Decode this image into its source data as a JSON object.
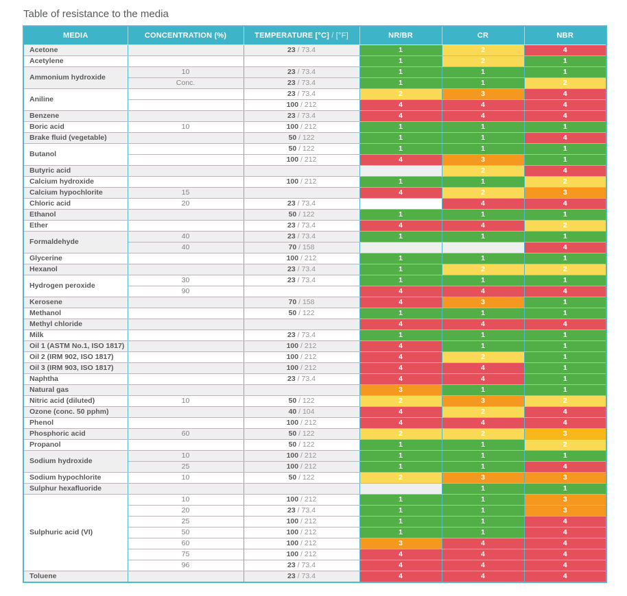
{
  "title": "Table of resistance to the media",
  "header": {
    "media": "MEDIA",
    "concentration": "CONCENTRATION (%)",
    "temperature_c": "TEMPERATURE [°C]",
    "temperature_sep": " / ",
    "temperature_f": "[°F]",
    "nr_br": "NR/BR",
    "cr": "CR",
    "nbr": "NBR"
  },
  "colors": {
    "header_teal": "#3eb4c8",
    "row_alt_gray": "#efefef",
    "border_teal": "#4cb9cc"
  },
  "table": {
    "rating_colors": {
      "1": "#52ae46",
      "2": "#fada54",
      "3": "#f6981f",
      "3a": "#fab71c",
      "4": "#e5505d"
    },
    "groups": [
      {
        "media": "Acetone",
        "rows": [
          {
            "concentration": "",
            "temp_c": "23",
            "temp_f": "73.4",
            "ratings": [
              "1",
              "2",
              "4"
            ]
          }
        ]
      },
      {
        "media": "Acetylene",
        "rows": [
          {
            "concentration": "",
            "temp_c": "",
            "temp_f": "",
            "ratings": [
              "1",
              "2",
              "1"
            ]
          }
        ]
      },
      {
        "media": "Ammonium hydroxide",
        "rows": [
          {
            "concentration": "10",
            "temp_c": "23",
            "temp_f": "73.4",
            "ratings": [
              "1",
              "1",
              "1"
            ]
          },
          {
            "concentration": "Conc.",
            "temp_c": "23",
            "temp_f": "73.4",
            "ratings": [
              "1",
              "1",
              "2"
            ]
          }
        ]
      },
      {
        "media": "Aniline",
        "rows": [
          {
            "concentration": "",
            "temp_c": "23",
            "temp_f": "73.4",
            "ratings": [
              "2",
              "3",
              "4"
            ]
          },
          {
            "concentration": "",
            "temp_c": "100",
            "temp_f": "212",
            "ratings": [
              "4",
              "4",
              "4"
            ]
          }
        ]
      },
      {
        "media": "Benzene",
        "rows": [
          {
            "concentration": "",
            "temp_c": "23",
            "temp_f": "73.4",
            "ratings": [
              "4",
              "4",
              "4"
            ]
          }
        ]
      },
      {
        "media": "Boric acid",
        "rows": [
          {
            "concentration": "10",
            "temp_c": "100",
            "temp_f": "212",
            "ratings": [
              "1",
              "1",
              "1"
            ]
          }
        ]
      },
      {
        "media": "Brake fluid (vegetable)",
        "rows": [
          {
            "concentration": "",
            "temp_c": "50",
            "temp_f": "122",
            "ratings": [
              "1",
              "1",
              "4"
            ]
          }
        ]
      },
      {
        "media": "Butanol",
        "rows": [
          {
            "concentration": "",
            "temp_c": "50",
            "temp_f": "122",
            "ratings": [
              "1",
              "1",
              "1"
            ]
          },
          {
            "concentration": "",
            "temp_c": "100",
            "temp_f": "212",
            "ratings": [
              "4",
              "3",
              "1"
            ]
          }
        ]
      },
      {
        "media": "Butyric acid",
        "rows": [
          {
            "concentration": "",
            "temp_c": "",
            "temp_f": "",
            "ratings": [
              "",
              "2",
              "4"
            ]
          }
        ]
      },
      {
        "media": "Calcium hydroxide",
        "rows": [
          {
            "concentration": "",
            "temp_c": "100",
            "temp_f": "212",
            "ratings": [
              "1",
              "1",
              "2"
            ]
          }
        ]
      },
      {
        "media": "Calcium hypochlorite",
        "rows": [
          {
            "concentration": "15",
            "temp_c": "",
            "temp_f": "",
            "ratings": [
              "4",
              "2",
              "3"
            ]
          }
        ]
      },
      {
        "media": "Chloric acid",
        "rows": [
          {
            "concentration": "20",
            "temp_c": "23",
            "temp_f": "73.4",
            "ratings": [
              "",
              "4",
              "4"
            ]
          }
        ]
      },
      {
        "media": "Ethanol",
        "rows": [
          {
            "concentration": "",
            "temp_c": "50",
            "temp_f": "122",
            "ratings": [
              "1",
              "1",
              "1"
            ]
          }
        ]
      },
      {
        "media": "Ether",
        "rows": [
          {
            "concentration": "",
            "temp_c": "23",
            "temp_f": "73.4",
            "ratings": [
              "4",
              "4",
              "2"
            ]
          }
        ]
      },
      {
        "media": "Formaldehyde",
        "rows": [
          {
            "concentration": "40",
            "temp_c": "23",
            "temp_f": "73.4",
            "ratings": [
              "1",
              "1",
              "1"
            ]
          },
          {
            "concentration": "40",
            "temp_c": "70",
            "temp_f": "158",
            "ratings": [
              "",
              "",
              "4"
            ]
          }
        ]
      },
      {
        "media": "Glycerine",
        "rows": [
          {
            "concentration": "",
            "temp_c": "100",
            "temp_f": "212",
            "ratings": [
              "1",
              "1",
              "1"
            ]
          }
        ]
      },
      {
        "media": "Hexanol",
        "rows": [
          {
            "concentration": "",
            "temp_c": "23",
            "temp_f": "73.4",
            "ratings": [
              "1",
              "2",
              "2"
            ]
          }
        ]
      },
      {
        "media": "Hydrogen peroxide",
        "rows": [
          {
            "concentration": "30",
            "temp_c": "23",
            "temp_f": "73.4",
            "ratings": [
              "1",
              "1",
              "1"
            ]
          },
          {
            "concentration": "90",
            "temp_c": "",
            "temp_f": "",
            "ratings": [
              "4",
              "4",
              "4"
            ]
          }
        ]
      },
      {
        "media": "Kerosene",
        "rows": [
          {
            "concentration": "",
            "temp_c": "70",
            "temp_f": "158",
            "ratings": [
              "4",
              "3",
              "1"
            ]
          }
        ]
      },
      {
        "media": "Methanol",
        "rows": [
          {
            "concentration": "",
            "temp_c": "50",
            "temp_f": "122",
            "ratings": [
              "1",
              "1",
              "1"
            ]
          }
        ]
      },
      {
        "media": "Methyl chloride",
        "rows": [
          {
            "concentration": "",
            "temp_c": "",
            "temp_f": "",
            "ratings": [
              "4",
              "4",
              "4"
            ]
          }
        ]
      },
      {
        "media": "Milk",
        "rows": [
          {
            "concentration": "",
            "temp_c": "23",
            "temp_f": "73.4",
            "ratings": [
              "1",
              "1",
              "1"
            ]
          }
        ]
      },
      {
        "media": "Oil 1 (ASTM No.1, ISO 1817)",
        "rows": [
          {
            "concentration": "",
            "temp_c": "100",
            "temp_f": "212",
            "ratings": [
              "4",
              "1",
              "1"
            ]
          }
        ]
      },
      {
        "media": "Oil 2 (IRM 902, ISO 1817)",
        "rows": [
          {
            "concentration": "",
            "temp_c": "100",
            "temp_f": "212",
            "ratings": [
              "4",
              "2",
              "1"
            ]
          }
        ]
      },
      {
        "media": "Oil 3 (IRM 903, ISO 1817)",
        "rows": [
          {
            "concentration": "",
            "temp_c": "100",
            "temp_f": "212",
            "ratings": [
              "4",
              "4",
              "1"
            ]
          }
        ]
      },
      {
        "media": "Naphtha",
        "rows": [
          {
            "concentration": "",
            "temp_c": "23",
            "temp_f": "73.4",
            "ratings": [
              "4",
              "4",
              "1"
            ]
          }
        ]
      },
      {
        "media": "Natural gas",
        "rows": [
          {
            "concentration": "",
            "temp_c": "",
            "temp_f": "",
            "ratings": [
              "3",
              "1",
              "1"
            ]
          }
        ]
      },
      {
        "media": "Nitric acid (diluted)",
        "rows": [
          {
            "concentration": "10",
            "temp_c": "50",
            "temp_f": "122",
            "ratings": [
              "2",
              "3",
              "2"
            ]
          }
        ]
      },
      {
        "media": "Ozone (conc. 50 pphm)",
        "rows": [
          {
            "concentration": "",
            "temp_c": "40",
            "temp_f": "104",
            "ratings": [
              "4",
              "2",
              "4"
            ]
          }
        ]
      },
      {
        "media": "Phenol",
        "rows": [
          {
            "concentration": "",
            "temp_c": "100",
            "temp_f": "212",
            "ratings": [
              "4",
              "4",
              "4"
            ]
          }
        ]
      },
      {
        "media": "Phosphoric acid",
        "rows": [
          {
            "concentration": "60",
            "temp_c": "50",
            "temp_f": "122",
            "ratings": [
              "2",
              "2",
              "3a"
            ]
          }
        ]
      },
      {
        "media": "Propanol",
        "rows": [
          {
            "concentration": "",
            "temp_c": "50",
            "temp_f": "122",
            "ratings": [
              "1",
              "1",
              "2"
            ]
          }
        ]
      },
      {
        "media": "Sodium hydroxide",
        "rows": [
          {
            "concentration": "10",
            "temp_c": "100",
            "temp_f": "212",
            "ratings": [
              "1",
              "1",
              "1"
            ]
          },
          {
            "concentration": "25",
            "temp_c": "100",
            "temp_f": "212",
            "ratings": [
              "1",
              "1",
              "4"
            ]
          }
        ]
      },
      {
        "media": "Sodium hypochlorite",
        "rows": [
          {
            "concentration": "10",
            "temp_c": "50",
            "temp_f": "122",
            "ratings": [
              "2",
              "3",
              "3"
            ]
          }
        ]
      },
      {
        "media": "Sulphur hexafluoride",
        "rows": [
          {
            "concentration": "",
            "temp_c": "",
            "temp_f": "",
            "ratings": [
              "",
              "1",
              "1"
            ]
          }
        ]
      },
      {
        "media": "Sulphuric acid (VI)",
        "rows": [
          {
            "concentration": "10",
            "temp_c": "100",
            "temp_f": "212",
            "ratings": [
              "1",
              "1",
              "3"
            ]
          },
          {
            "concentration": "20",
            "temp_c": "23",
            "temp_f": "73.4",
            "ratings": [
              "1",
              "1",
              "3"
            ]
          },
          {
            "concentration": "25",
            "temp_c": "100",
            "temp_f": "212",
            "ratings": [
              "1",
              "1",
              "4"
            ]
          },
          {
            "concentration": "50",
            "temp_c": "100",
            "temp_f": "212",
            "ratings": [
              "1",
              "1",
              "4"
            ]
          },
          {
            "concentration": "60",
            "temp_c": "100",
            "temp_f": "212",
            "ratings": [
              "3",
              "4",
              "4"
            ]
          },
          {
            "concentration": "75",
            "temp_c": "100",
            "temp_f": "212",
            "ratings": [
              "4",
              "4",
              "4"
            ]
          },
          {
            "concentration": "96",
            "temp_c": "23",
            "temp_f": "73.4",
            "ratings": [
              "4",
              "4",
              "4"
            ]
          }
        ]
      },
      {
        "media": "Toluene",
        "rows": [
          {
            "concentration": "",
            "temp_c": "23",
            "temp_f": "73.4",
            "ratings": [
              "4",
              "4",
              "4"
            ]
          }
        ]
      }
    ]
  }
}
